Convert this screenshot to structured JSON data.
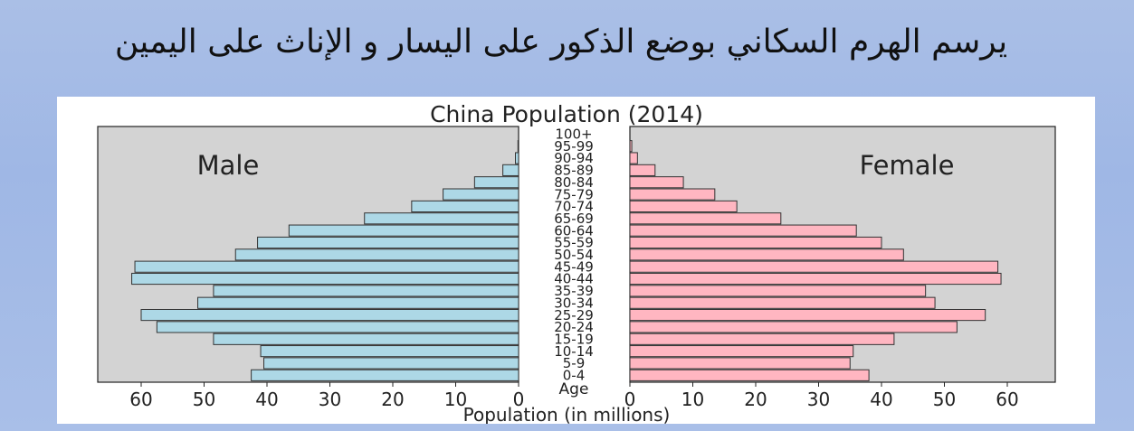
{
  "slide": {
    "title": "يرسم الهرم السكاني بوضع الذكور على اليسار و الإناث على اليمين"
  },
  "colors": {
    "male": "#add8e6",
    "female": "#ffb6c1",
    "plot_background": "#d3d3d3",
    "bar_edge": "#333333"
  },
  "chart_data": {
    "type": "bar",
    "orientation": "horizontal",
    "title": "China Population (2014)",
    "xlabel": "Population (in millions)",
    "center_axis_label": "Age",
    "categories": [
      "0-4",
      "5-9",
      "10-14",
      "15-19",
      "20-24",
      "25-29",
      "30-34",
      "35-39",
      "40-44",
      "45-49",
      "50-54",
      "55-59",
      "60-64",
      "65-69",
      "70-74",
      "75-79",
      "80-84",
      "85-89",
      "90-94",
      "95-99",
      "100+"
    ],
    "series": [
      {
        "name": "Male",
        "side": "left",
        "values": [
          42.5,
          40.5,
          41.0,
          48.5,
          57.5,
          60.0,
          51.0,
          48.5,
          61.5,
          61.0,
          45.0,
          41.5,
          36.5,
          24.5,
          17.0,
          12.0,
          7.0,
          2.5,
          0.5,
          0.1,
          0.0
        ]
      },
      {
        "name": "Female",
        "side": "right",
        "values": [
          38.0,
          35.0,
          35.5,
          42.0,
          52.0,
          56.5,
          48.5,
          47.0,
          59.0,
          58.5,
          43.5,
          40.0,
          36.0,
          24.0,
          17.0,
          13.5,
          8.5,
          4.0,
          1.2,
          0.3,
          0.0
        ]
      }
    ],
    "xlim": [
      0,
      65
    ],
    "male_ticks": [
      60,
      50,
      40,
      30,
      20,
      10,
      0
    ],
    "female_ticks": [
      0,
      10,
      20,
      30,
      40,
      50,
      60
    ],
    "grid": false,
    "side_labels": [
      "Male",
      "Female"
    ]
  }
}
